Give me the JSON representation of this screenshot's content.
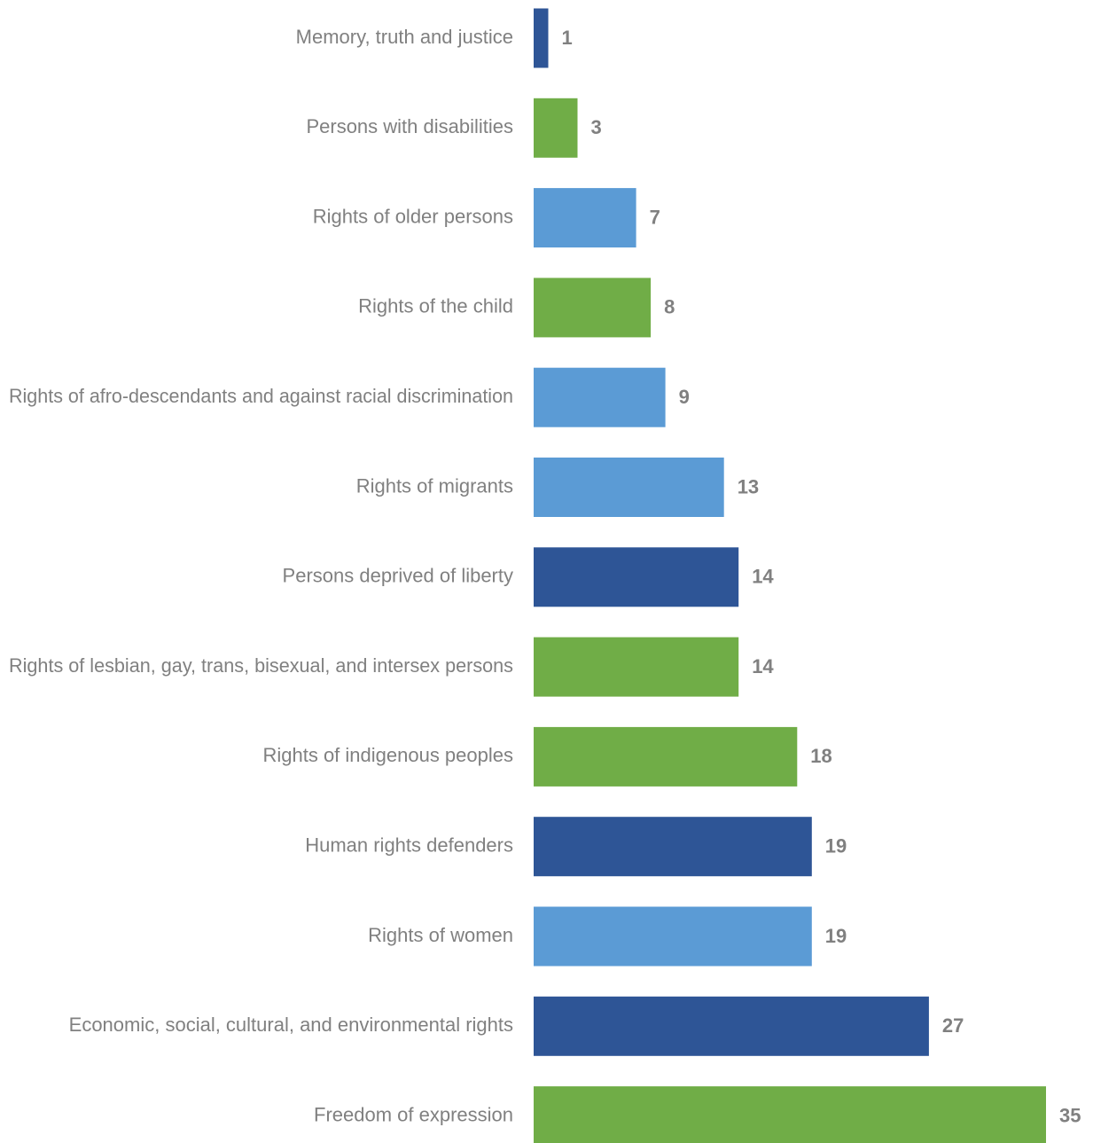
{
  "chart_data": {
    "type": "bar",
    "orientation": "horizontal",
    "categories": [
      "Memory, truth and justice",
      "Persons with disabilities",
      "Rights of older persons",
      "Rights of the child",
      "Rights of afro-descendants and against racial discrimination",
      "Rights of migrants",
      "Persons deprived of liberty",
      "Rights of lesbian, gay, trans, bisexual, and intersex persons",
      "Rights of indigenous peoples",
      "Human rights defenders",
      "Rights of women",
      "Economic, social, cultural, and environmental rights",
      "Freedom of expression"
    ],
    "values": [
      1,
      3,
      7,
      8,
      9,
      13,
      14,
      14,
      18,
      19,
      19,
      27,
      35
    ],
    "value_labels": [
      "1",
      "3",
      "7",
      "8",
      "9",
      "13",
      "14",
      "14",
      "18",
      "19",
      "19",
      "27",
      "35"
    ],
    "bar_colors": [
      "#2E5596",
      "#70AD47",
      "#5B9BD5",
      "#70AD47",
      "#5B9BD5",
      "#5B9BD5",
      "#2E5596",
      "#70AD47",
      "#70AD47",
      "#2E5596",
      "#5B9BD5",
      "#2E5596",
      "#70AD47"
    ],
    "xlim": [
      0,
      35
    ],
    "grid": false,
    "legend": false,
    "title": "",
    "xlabel": "",
    "ylabel": ""
  },
  "colors": {
    "dark_blue": "#2E5596",
    "green": "#70AD47",
    "light_blue": "#5B9BD5",
    "label_gray": "#808080"
  }
}
